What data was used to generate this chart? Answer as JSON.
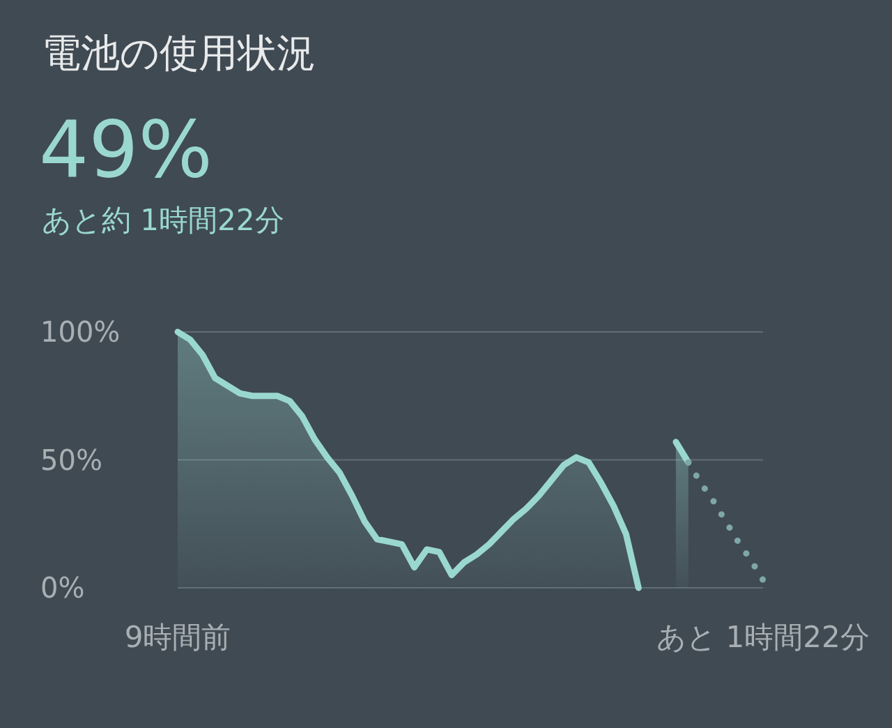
{
  "chart_data": {
    "type": "area",
    "title": "電池の使用状況",
    "subtitle": "49%",
    "annotations": [
      "あと約 1時間22分"
    ],
    "categories": [
      "9時間前",
      null,
      null,
      null,
      null,
      null,
      null,
      null,
      null,
      null,
      null,
      null,
      null,
      null,
      null,
      null,
      null,
      null,
      null,
      null,
      null,
      null,
      null,
      null,
      null,
      null,
      null,
      null,
      null,
      null,
      null,
      null,
      null,
      null,
      null,
      null,
      null,
      null,
      null,
      null,
      null,
      null,
      null,
      null,
      null,
      null,
      null,
      "あと 1時間22分"
    ],
    "ylim": [
      0,
      100
    ],
    "yticks": [
      {
        "value": 0,
        "label": "0%"
      },
      {
        "value": 50,
        "label": "50%"
      },
      {
        "value": 100,
        "label": "100%"
      }
    ],
    "grid": "y",
    "series": [
      {
        "color": "#9ad8cf",
        "values": [
          100,
          97,
          91,
          82,
          79,
          76,
          75,
          75,
          75,
          73,
          67,
          58,
          51,
          45,
          36,
          26,
          19,
          18,
          17,
          8,
          15,
          14,
          5,
          10,
          13,
          17,
          22,
          27,
          31,
          36,
          42,
          48,
          51,
          49,
          41,
          32,
          21,
          0,
          null,
          null,
          null,
          null,
          null,
          null,
          null,
          null,
          null,
          null
        ]
      },
      {
        "color": "#9ad8cf",
        "values": [
          null,
          null,
          null,
          null,
          null,
          null,
          null,
          null,
          null,
          null,
          null,
          null,
          null,
          null,
          null,
          null,
          null,
          null,
          null,
          null,
          null,
          null,
          null,
          null,
          null,
          null,
          null,
          null,
          null,
          null,
          null,
          null,
          null,
          null,
          null,
          null,
          null,
          null,
          null,
          null,
          57,
          49,
          null,
          null,
          null,
          null,
          null,
          null
        ]
      },
      {
        "type": "line",
        "color": "#7fa6a8",
        "line_style": "dotted",
        "values": [
          null,
          null,
          null,
          null,
          null,
          null,
          null,
          null,
          null,
          null,
          null,
          null,
          null,
          null,
          null,
          null,
          null,
          null,
          null,
          null,
          null,
          null,
          null,
          null,
          null,
          null,
          null,
          null,
          null,
          null,
          null,
          null,
          null,
          null,
          null,
          null,
          null,
          null,
          null,
          null,
          null,
          49,
          41,
          34,
          26,
          18,
          11,
          3
        ]
      }
    ]
  }
}
